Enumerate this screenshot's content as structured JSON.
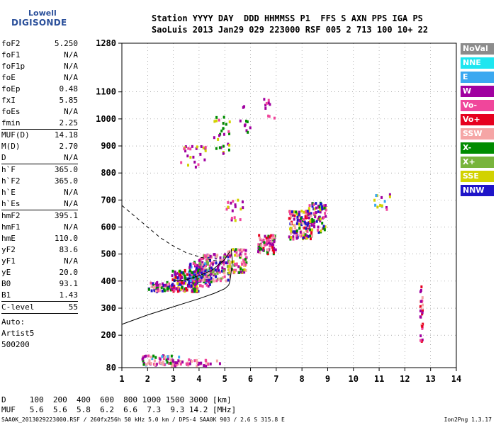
{
  "logo": {
    "line1": "Lowell",
    "line2": "DIGISONDE"
  },
  "header": {
    "line1": "Station YYYY DAY  DDD HHMMSS P1  FFS S AXN PPS IGA PS",
    "line2": "SaoLuis 2013 Jan29 029 223000 RSF 005 2 713 100 10+ 22"
  },
  "params": [
    {
      "name": "foF2",
      "value": "5.250"
    },
    {
      "name": "foF1",
      "value": "N/A"
    },
    {
      "name": "foF1p",
      "value": "N/A"
    },
    {
      "name": "foE",
      "value": "N/A"
    },
    {
      "name": "foEp",
      "value": "0.48"
    },
    {
      "name": "fxI",
      "value": "5.85"
    },
    {
      "name": "foEs",
      "value": "N/A"
    },
    {
      "name": "fmin",
      "value": "2.25",
      "sep": true
    },
    {
      "name": "MUF(D)",
      "value": "14.18"
    },
    {
      "name": "M(D)",
      "value": "2.70"
    },
    {
      "name": "D",
      "value": "N/A",
      "sep": true
    },
    {
      "name": "h`F",
      "value": "365.0"
    },
    {
      "name": "h`F2",
      "value": "365.0"
    },
    {
      "name": "h`E",
      "value": "N/A"
    },
    {
      "name": "h`Es",
      "value": "N/A",
      "sep": true
    },
    {
      "name": "hmF2",
      "value": "395.1"
    },
    {
      "name": "hmF1",
      "value": "N/A"
    },
    {
      "name": "hmE",
      "value": "110.0"
    },
    {
      "name": "yF2",
      "value": "83.6"
    },
    {
      "name": "yF1",
      "value": "N/A"
    },
    {
      "name": "yE",
      "value": "20.0"
    },
    {
      "name": "B0",
      "value": "93.1"
    },
    {
      "name": "B1",
      "value": "1.43",
      "sep": true
    },
    {
      "name": "C-level",
      "value": "55",
      "sep": true
    }
  ],
  "autoscale": {
    "line1": "Auto:",
    "line2": "Artist5",
    "line3": "500200"
  },
  "legend": [
    {
      "label": "NoVal",
      "color": "#8c8c8c"
    },
    {
      "label": "NNE",
      "color": "#1ee6f0"
    },
    {
      "label": "E",
      "color": "#3aa8f0"
    },
    {
      "label": "W",
      "color": "#a000a0"
    },
    {
      "label": "Vo-",
      "color": "#f0469b"
    },
    {
      "label": "Vo+",
      "color": "#e6001e"
    },
    {
      "label": "SSW",
      "color": "#f5a5a5"
    },
    {
      "label": "X-",
      "color": "#008c00"
    },
    {
      "label": "X+",
      "color": "#78b43c"
    },
    {
      "label": "SSE",
      "color": "#d2d200"
    },
    {
      "label": "NNW",
      "color": "#1e14c8"
    }
  ],
  "muf_table": {
    "row1": "D     100  200  400  600  800 1000 1500 3000 [km]",
    "row2": "MUF   5.6  5.6  5.8  6.2  6.6  7.3  9.3 14.2 [MHz]"
  },
  "footer": "SAA0K_2013029223000.RSF / 260fx256h 50 kHz 5.0 km / DPS-4 SAA0K 903 / 2.6 S 315.8 E",
  "version": "Ion2Png 1.3.17",
  "chart_data": {
    "type": "scatter",
    "xlim": [
      1,
      14
    ],
    "ylim": [
      80,
      1280
    ],
    "x_ticks": [
      1,
      2,
      3,
      4,
      5,
      6,
      7,
      8,
      9,
      10,
      11,
      12,
      13,
      14
    ],
    "y_ticks": [
      80,
      200,
      300,
      400,
      500,
      600,
      700,
      800,
      900,
      1000,
      1100,
      1280
    ],
    "grid": "dotted",
    "legend_placement": "right",
    "clusters": [
      {
        "x": [
          2.05,
          2.95
        ],
        "y": [
          360,
          395
        ],
        "mix": [
          "Vo-",
          "W",
          "X-",
          "NNW",
          "SSW"
        ],
        "n": 60
      },
      {
        "x": [
          2.95,
          4.0
        ],
        "y": [
          360,
          440
        ],
        "mix": [
          "Vo-",
          "W",
          "NNW",
          "X-",
          "SSE",
          "Vo+"
        ],
        "n": 170
      },
      {
        "x": [
          3.6,
          4.5
        ],
        "y": [
          380,
          470
        ],
        "mix": [
          "W",
          "NNW",
          "Vo-",
          "X-",
          "E"
        ],
        "n": 120
      },
      {
        "x": [
          4.0,
          5.2
        ],
        "y": [
          400,
          500
        ],
        "mix": [
          "Vo-",
          "W",
          "NNW",
          "SSW",
          "X+"
        ],
        "n": 150
      },
      {
        "x": [
          5.1,
          5.85
        ],
        "y": [
          430,
          520
        ],
        "mix": [
          "Vo-",
          "SSW",
          "W",
          "X-",
          "SSE"
        ],
        "n": 80
      },
      {
        "x": [
          6.3,
          7.0
        ],
        "y": [
          500,
          570
        ],
        "mix": [
          "X-",
          "Vo-",
          "W",
          "Vo+",
          "SSW"
        ],
        "n": 80
      },
      {
        "x": [
          7.5,
          8.4
        ],
        "y": [
          555,
          660
        ],
        "mix": [
          "Vo-",
          "X-",
          "W",
          "SSW",
          "SSE",
          "Vo+",
          "NNW"
        ],
        "n": 150
      },
      {
        "x": [
          8.2,
          8.95
        ],
        "y": [
          580,
          690
        ],
        "mix": [
          "Vo-",
          "W",
          "X-",
          "SSE",
          "NNW"
        ],
        "n": 80
      },
      {
        "x": [
          3.3,
          4.3
        ],
        "y": [
          820,
          900
        ],
        "mix": [
          "W",
          "Vo-",
          "SSE"
        ],
        "n": 24
      },
      {
        "x": [
          4.5,
          5.2
        ],
        "y": [
          870,
          1010
        ],
        "mix": [
          "W",
          "Vo-",
          "X-",
          "SSE"
        ],
        "n": 28
      },
      {
        "x": [
          5.6,
          6.0
        ],
        "y": [
          950,
          1050
        ],
        "mix": [
          "W",
          "X-"
        ],
        "n": 10
      },
      {
        "x": [
          6.5,
          7.0
        ],
        "y": [
          1000,
          1100
        ],
        "mix": [
          "W",
          "Vo-"
        ],
        "n": 10
      },
      {
        "x": [
          5.0,
          5.8
        ],
        "y": [
          620,
          700
        ],
        "mix": [
          "SSE",
          "W",
          "Vo-"
        ],
        "n": 18
      },
      {
        "x": [
          1.8,
          3.3
        ],
        "y": [
          85,
          125
        ],
        "mix": [
          "W",
          "Vo-",
          "X-",
          "E",
          "SSW"
        ],
        "n": 70
      },
      {
        "x": [
          3.3,
          4.9
        ],
        "y": [
          85,
          110
        ],
        "mix": [
          "W",
          "Vo-",
          "SSW"
        ],
        "n": 30
      },
      {
        "x": [
          10.8,
          11.5
        ],
        "y": [
          660,
          720
        ],
        "mix": [
          "W",
          "Vo-",
          "E",
          "SSE"
        ],
        "n": 14
      },
      {
        "x": [
          12.6,
          12.7
        ],
        "y": [
          170,
          400
        ],
        "mix": [
          "Vo-",
          "W",
          "SSW",
          "Vo+"
        ],
        "n": 26
      }
    ],
    "trace_solid": [
      [
        1.0,
        240
      ],
      [
        2.0,
        275
      ],
      [
        3.0,
        305
      ],
      [
        4.0,
        335
      ],
      [
        4.6,
        355
      ],
      [
        5.0,
        372
      ],
      [
        5.15,
        385
      ],
      [
        5.2,
        400
      ],
      [
        5.3,
        470
      ],
      [
        5.25,
        520
      ]
    ],
    "trace_solid_2": [
      [
        3.0,
        400
      ],
      [
        3.5,
        405
      ],
      [
        4.0,
        420
      ],
      [
        4.5,
        440
      ],
      [
        5.0,
        480
      ],
      [
        5.2,
        510
      ]
    ],
    "trace_dashed": [
      [
        1.0,
        680
      ],
      [
        1.5,
        640
      ],
      [
        2.0,
        600
      ],
      [
        2.5,
        560
      ],
      [
        3.0,
        530
      ],
      [
        3.5,
        505
      ],
      [
        4.0,
        490
      ],
      [
        4.5,
        478
      ],
      [
        5.0,
        470
      ]
    ]
  }
}
